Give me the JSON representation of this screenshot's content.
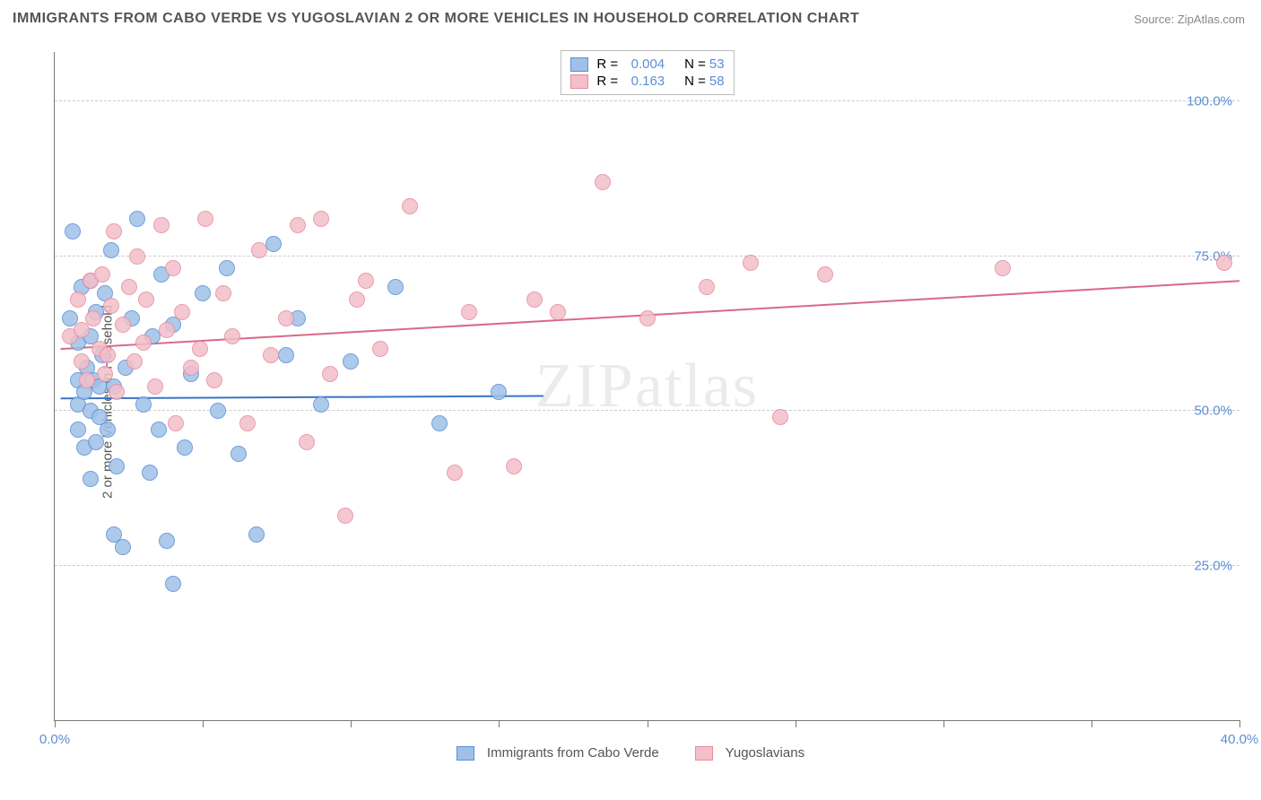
{
  "title": "IMMIGRANTS FROM CABO VERDE VS YUGOSLAVIAN 2 OR MORE VEHICLES IN HOUSEHOLD CORRELATION CHART",
  "source_label": "Source:",
  "source_value": "ZipAtlas.com",
  "ylabel": "2 or more Vehicles in Household",
  "watermark": "ZIPatlas",
  "chart": {
    "type": "scatter",
    "background_color": "#ffffff",
    "grid_color": "#cccccc",
    "axis_color": "#777777",
    "tick_label_color": "#5a8fd6",
    "xlim": [
      0,
      40
    ],
    "ylim": [
      0,
      108
    ],
    "yticks": [
      {
        "value": 25,
        "label": "25.0%"
      },
      {
        "value": 50,
        "label": "50.0%"
      },
      {
        "value": 75,
        "label": "75.0%"
      },
      {
        "value": 100,
        "label": "100.0%"
      }
    ],
    "xtick_values": [
      0,
      5,
      10,
      15,
      20,
      25,
      30,
      35,
      40
    ],
    "xtick_labels": [
      {
        "value": 0,
        "label": "0.0%"
      },
      {
        "value": 40,
        "label": "40.0%"
      }
    ],
    "marker_radius": 9,
    "marker_opacity_fill": 0.35,
    "series": [
      {
        "id": "cabo",
        "label": "Immigrants from Cabo Verde",
        "fill_color": "#9fc1e8",
        "stroke_color": "#5a8fd6",
        "r_label": "R =",
        "r_value": "0.004",
        "n_label": "N =",
        "n_value": "53",
        "trend": {
          "x0": 0.2,
          "y0": 52,
          "x1": 16.5,
          "y1": 52.4,
          "color": "#3a74c4",
          "width": 2
        },
        "points": [
          [
            0.5,
            65
          ],
          [
            0.6,
            79
          ],
          [
            0.8,
            55
          ],
          [
            0.8,
            51
          ],
          [
            0.8,
            47
          ],
          [
            0.8,
            61
          ],
          [
            0.9,
            70
          ],
          [
            1.0,
            44
          ],
          [
            1.0,
            53
          ],
          [
            1.1,
            57
          ],
          [
            1.2,
            39
          ],
          [
            1.2,
            50
          ],
          [
            1.2,
            62
          ],
          [
            1.2,
            71
          ],
          [
            1.3,
            55
          ],
          [
            1.4,
            45
          ],
          [
            1.4,
            66
          ],
          [
            1.5,
            49
          ],
          [
            1.5,
            54
          ],
          [
            1.6,
            59
          ],
          [
            1.7,
            69
          ],
          [
            1.8,
            47
          ],
          [
            1.9,
            76
          ],
          [
            2.0,
            30
          ],
          [
            2.0,
            54
          ],
          [
            2.1,
            41
          ],
          [
            2.3,
            28
          ],
          [
            2.4,
            57
          ],
          [
            2.6,
            65
          ],
          [
            2.8,
            81
          ],
          [
            3.0,
            51
          ],
          [
            3.2,
            40
          ],
          [
            3.3,
            62
          ],
          [
            3.5,
            47
          ],
          [
            3.6,
            72
          ],
          [
            3.8,
            29
          ],
          [
            4.0,
            22
          ],
          [
            4.0,
            64
          ],
          [
            4.4,
            44
          ],
          [
            4.6,
            56
          ],
          [
            5.0,
            69
          ],
          [
            5.5,
            50
          ],
          [
            5.8,
            73
          ],
          [
            6.2,
            43
          ],
          [
            6.8,
            30
          ],
          [
            7.4,
            77
          ],
          [
            7.8,
            59
          ],
          [
            8.2,
            65
          ],
          [
            9.0,
            51
          ],
          [
            10.0,
            58
          ],
          [
            11.5,
            70
          ],
          [
            13.0,
            48
          ],
          [
            15.0,
            53
          ]
        ]
      },
      {
        "id": "yugo",
        "label": "Yugoslavians",
        "fill_color": "#f3bfc9",
        "stroke_color": "#e88ba0",
        "r_label": "R =",
        "r_value": "0.163",
        "n_label": "N =",
        "n_value": "58",
        "trend": {
          "x0": 0.2,
          "y0": 60,
          "x1": 40,
          "y1": 71,
          "color": "#d96a86",
          "width": 2
        },
        "points": [
          [
            0.5,
            62
          ],
          [
            0.8,
            68
          ],
          [
            0.9,
            58
          ],
          [
            0.9,
            63
          ],
          [
            1.1,
            55
          ],
          [
            1.2,
            71
          ],
          [
            1.3,
            65
          ],
          [
            1.5,
            60
          ],
          [
            1.6,
            72
          ],
          [
            1.7,
            56
          ],
          [
            1.8,
            59
          ],
          [
            1.9,
            67
          ],
          [
            2.0,
            79
          ],
          [
            2.1,
            53
          ],
          [
            2.3,
            64
          ],
          [
            2.5,
            70
          ],
          [
            2.7,
            58
          ],
          [
            2.8,
            75
          ],
          [
            3.0,
            61
          ],
          [
            3.1,
            68
          ],
          [
            3.4,
            54
          ],
          [
            3.6,
            80
          ],
          [
            3.8,
            63
          ],
          [
            4.0,
            73
          ],
          [
            4.1,
            48
          ],
          [
            4.3,
            66
          ],
          [
            4.6,
            57
          ],
          [
            4.9,
            60
          ],
          [
            5.1,
            81
          ],
          [
            5.4,
            55
          ],
          [
            5.7,
            69
          ],
          [
            6.0,
            62
          ],
          [
            6.5,
            48
          ],
          [
            6.9,
            76
          ],
          [
            7.3,
            59
          ],
          [
            7.8,
            65
          ],
          [
            8.2,
            80
          ],
          [
            8.5,
            45
          ],
          [
            9.0,
            81
          ],
          [
            9.3,
            56
          ],
          [
            9.8,
            33
          ],
          [
            10.2,
            68
          ],
          [
            10.5,
            71
          ],
          [
            11.0,
            60
          ],
          [
            12.0,
            83
          ],
          [
            13.5,
            40
          ],
          [
            14.0,
            66
          ],
          [
            15.5,
            41
          ],
          [
            16.2,
            68
          ],
          [
            17.0,
            66
          ],
          [
            18.5,
            87
          ],
          [
            20.0,
            65
          ],
          [
            22.0,
            70
          ],
          [
            23.5,
            74
          ],
          [
            24.5,
            49
          ],
          [
            26.0,
            72
          ],
          [
            32.0,
            73
          ],
          [
            39.5,
            74
          ]
        ]
      }
    ]
  },
  "legend_top": {
    "border_color": "#bbbbbb"
  }
}
